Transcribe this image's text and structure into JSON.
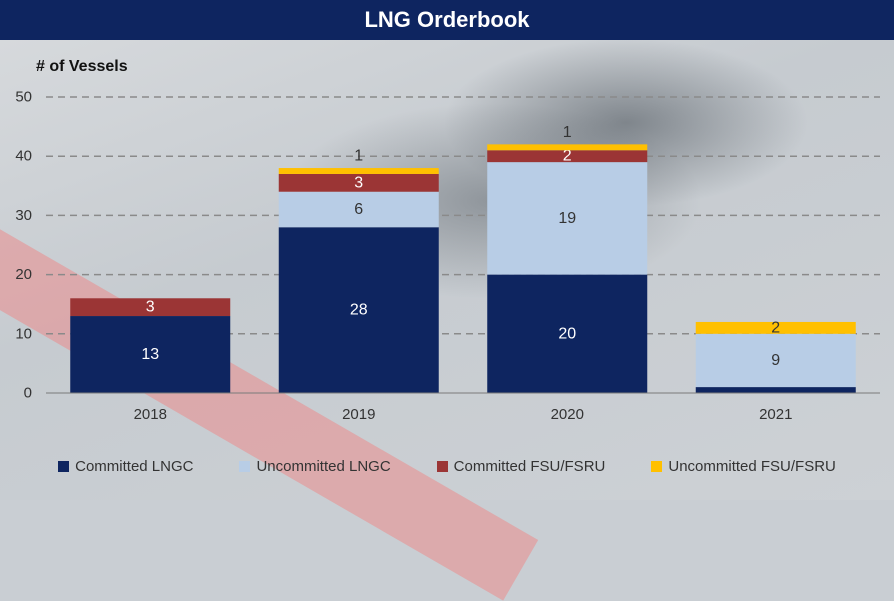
{
  "header": {
    "title": "LNG Orderbook"
  },
  "chart_data": {
    "type": "bar",
    "stacked": true,
    "title": "LNG Orderbook",
    "ylabel": "# of Vessels",
    "xlabel": "",
    "ylim": [
      0,
      50
    ],
    "yticks": [
      0,
      10,
      20,
      30,
      40,
      50
    ],
    "grid": true,
    "legend_position": "bottom",
    "categories": [
      "2018",
      "2019",
      "2020",
      "2021"
    ],
    "series": [
      {
        "name": "Committed LNGC",
        "color": "#0e2560",
        "label_color": "#ffffff",
        "values": [
          13,
          28,
          20,
          1
        ]
      },
      {
        "name": "Uncommitted LNGC",
        "color": "#b8cde6",
        "label_color": "#333333",
        "values": [
          0,
          6,
          19,
          9
        ]
      },
      {
        "name": "Committed FSU/FSRU",
        "color": "#9b3535",
        "label_color": "#ffffff",
        "values": [
          3,
          3,
          2,
          0
        ]
      },
      {
        "name": "Uncommitted FSU/FSRU",
        "color": "#ffc000",
        "label_color": "#333333",
        "values": [
          0,
          1,
          1,
          2
        ]
      }
    ]
  }
}
